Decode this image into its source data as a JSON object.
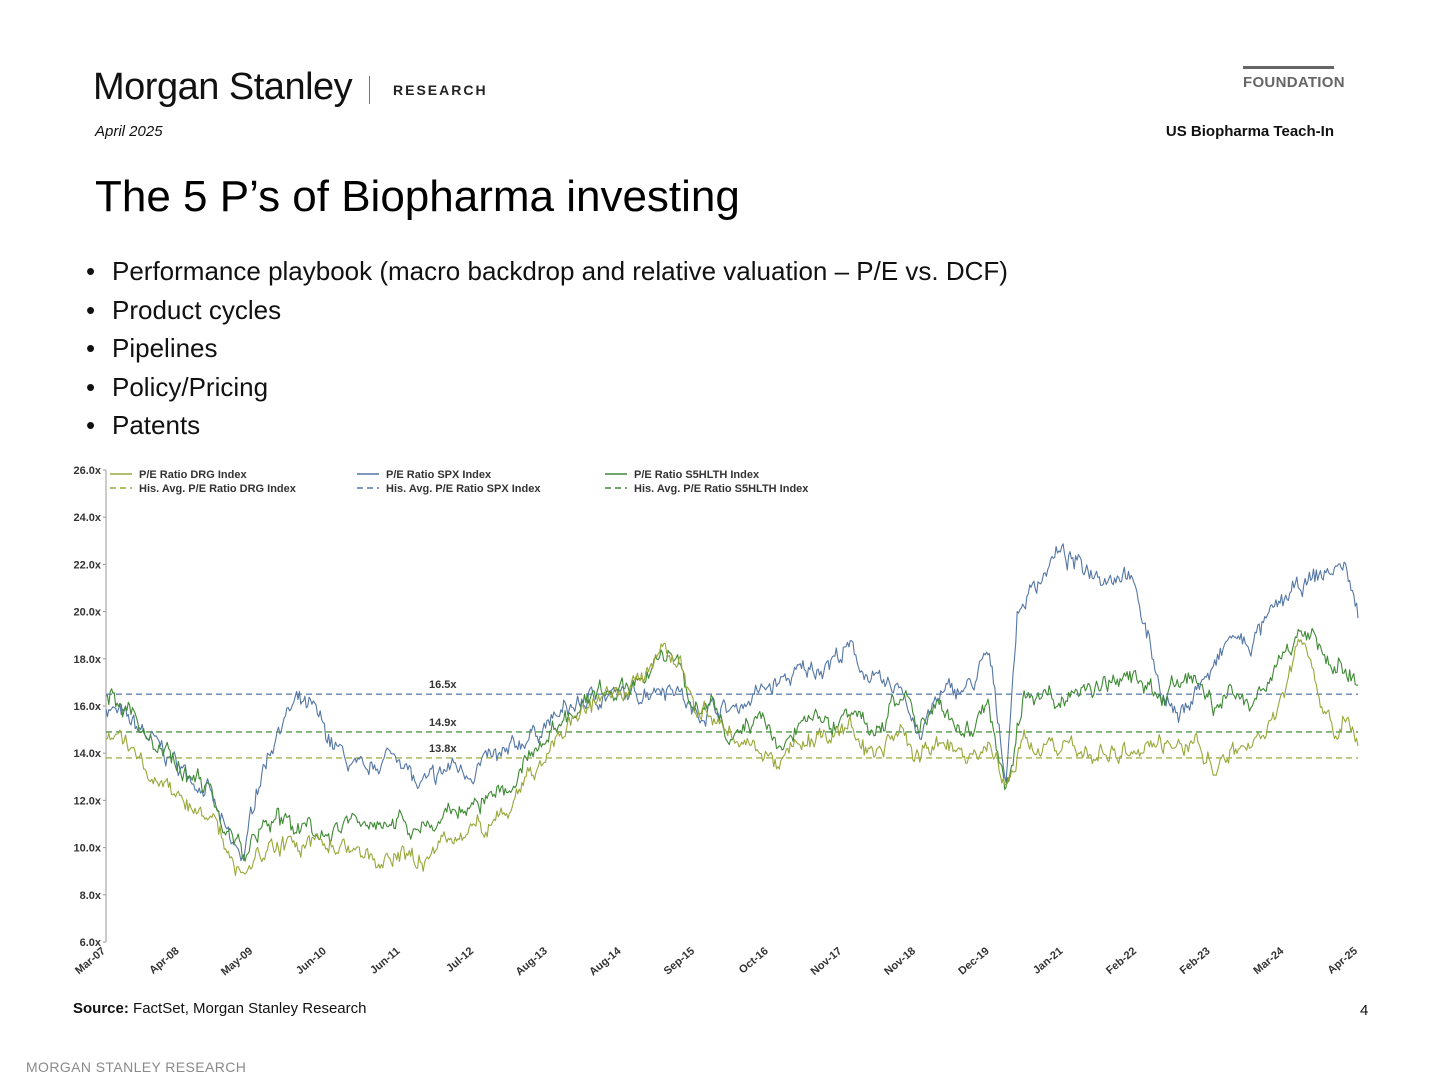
{
  "header": {
    "logo_text": "Morgan Stanley",
    "section": "RESEARCH",
    "badge": "FOUNDATION",
    "date": "April 2025",
    "report_name": "US Biopharma Teach-In"
  },
  "slide": {
    "title": "The 5 P’s of Biopharma investing",
    "bullets": [
      "Performance playbook (macro backdrop and relative valuation – P/E vs. DCF)",
      "Product cycles",
      "Pipelines",
      "Policy/Pricing",
      "Patents"
    ]
  },
  "chart_data": {
    "type": "line",
    "x_start": "2007-03",
    "x_end": "2025-04",
    "x_tick_labels": [
      "Mar-07",
      "Apr-08",
      "May-09",
      "Jun-10",
      "Jun-11",
      "Jul-12",
      "Aug-13",
      "Aug-14",
      "Sep-15",
      "Oct-16",
      "Nov-17",
      "Nov-18",
      "Dec-19",
      "Jan-21",
      "Feb-22",
      "Feb-23",
      "Mar-24",
      "Apr-25"
    ],
    "ylim": [
      6,
      26
    ],
    "y_ticks": [
      26,
      24,
      22,
      20,
      18,
      16,
      14,
      12,
      10,
      8,
      6
    ],
    "y_tick_labels": [
      "26.0x",
      "24.0x",
      "22.0x",
      "20.0x",
      "18.0x",
      "16.0x",
      "14.0x",
      "12.0x",
      "10.0x",
      "8.0x",
      "6.0x"
    ],
    "legend": [
      {
        "label": "P/E Ratio DRG Index",
        "color": "#9aa83a",
        "dash": false
      },
      {
        "label": "His. Avg. P/E Ratio DRG Index",
        "color": "#9aa83a",
        "dash": true
      },
      {
        "label": "P/E Ratio SPX Index",
        "color": "#5577a5",
        "dash": false
      },
      {
        "label": "His. Avg. P/E Ratio SPX Index",
        "color": "#5577a5",
        "dash": true
      },
      {
        "label": "P/E Ratio S5HLTH Index",
        "color": "#3f8a35",
        "dash": false
      },
      {
        "label": "His. Avg. P/E Ratio S5HLTH Index",
        "color": "#3f8a35",
        "dash": true
      }
    ],
    "annotations": [
      {
        "text": "16.5x",
        "value": 16.5
      },
      {
        "text": "14.9x",
        "value": 14.9
      },
      {
        "text": "13.8x",
        "value": 13.8
      }
    ],
    "series": [
      {
        "name": "P/E Ratio SPX Index",
        "color": "#5577a5",
        "average": 16.5,
        "points": [
          [
            "2007-03",
            16.0
          ],
          [
            "2007-09",
            15.0
          ],
          [
            "2008-03",
            13.6
          ],
          [
            "2008-09",
            12.3
          ],
          [
            "2008-11",
            11.0
          ],
          [
            "2009-01",
            10.0
          ],
          [
            "2009-03",
            9.6
          ],
          [
            "2009-05",
            12.5
          ],
          [
            "2009-09",
            15.2
          ],
          [
            "2009-12",
            16.1
          ],
          [
            "2010-03",
            15.8
          ],
          [
            "2010-06",
            14.5
          ],
          [
            "2010-09",
            13.6
          ],
          [
            "2010-12",
            13.0
          ],
          [
            "2011-03",
            13.8
          ],
          [
            "2011-06",
            14.0
          ],
          [
            "2011-09",
            12.5
          ],
          [
            "2011-12",
            12.9
          ],
          [
            "2012-03",
            13.5
          ],
          [
            "2012-06",
            13.2
          ],
          [
            "2012-09",
            13.7
          ],
          [
            "2012-12",
            13.8
          ],
          [
            "2013-03",
            14.5
          ],
          [
            "2013-06",
            15.0
          ],
          [
            "2013-09",
            15.5
          ],
          [
            "2013-12",
            16.0
          ],
          [
            "2014-03",
            16.3
          ],
          [
            "2014-06",
            16.5
          ],
          [
            "2014-09",
            16.4
          ],
          [
            "2014-12",
            16.6
          ],
          [
            "2015-03",
            16.9
          ],
          [
            "2015-06",
            16.8
          ],
          [
            "2015-09",
            15.6
          ],
          [
            "2015-12",
            16.0
          ],
          [
            "2016-03",
            15.8
          ],
          [
            "2016-06",
            16.2
          ],
          [
            "2016-09",
            16.7
          ],
          [
            "2016-12",
            17.0
          ],
          [
            "2017-03",
            17.4
          ],
          [
            "2017-06",
            17.6
          ],
          [
            "2017-09",
            18.0
          ],
          [
            "2017-12",
            18.4
          ],
          [
            "2018-03",
            17.3
          ],
          [
            "2018-06",
            16.7
          ],
          [
            "2018-09",
            16.9
          ],
          [
            "2018-12",
            14.6
          ],
          [
            "2019-03",
            16.3
          ],
          [
            "2019-06",
            16.7
          ],
          [
            "2019-09",
            16.8
          ],
          [
            "2019-12",
            18.2
          ],
          [
            "2020-03",
            13.0
          ],
          [
            "2020-05",
            20.0
          ],
          [
            "2020-09",
            21.5
          ],
          [
            "2020-12",
            22.5
          ],
          [
            "2021-03",
            22.0
          ],
          [
            "2021-06",
            21.8
          ],
          [
            "2021-09",
            21.5
          ],
          [
            "2021-12",
            21.8
          ],
          [
            "2022-03",
            19.5
          ],
          [
            "2022-06",
            16.6
          ],
          [
            "2022-09",
            15.4
          ],
          [
            "2022-12",
            16.8
          ],
          [
            "2023-03",
            17.5
          ],
          [
            "2023-06",
            19.0
          ],
          [
            "2023-09",
            18.5
          ],
          [
            "2023-12",
            19.5
          ],
          [
            "2024-03",
            20.5
          ],
          [
            "2024-06",
            21.0
          ],
          [
            "2024-09",
            21.5
          ],
          [
            "2024-12",
            21.8
          ],
          [
            "2025-02",
            21.9
          ],
          [
            "2025-04",
            19.8
          ]
        ]
      },
      {
        "name": "P/E Ratio S5HLTH Index",
        "color": "#3f8a35",
        "average": 14.9,
        "points": [
          [
            "2007-03",
            16.7
          ],
          [
            "2007-09",
            15.2
          ],
          [
            "2008-03",
            13.5
          ],
          [
            "2008-09",
            12.5
          ],
          [
            "2008-11",
            11.0
          ],
          [
            "2009-01",
            10.3
          ],
          [
            "2009-03",
            9.8
          ],
          [
            "2009-06",
            10.8
          ],
          [
            "2009-12",
            11.0
          ],
          [
            "2010-06",
            10.7
          ],
          [
            "2010-12",
            11.3
          ],
          [
            "2011-06",
            11.2
          ],
          [
            "2011-09",
            10.5
          ],
          [
            "2011-12",
            11.3
          ],
          [
            "2012-06",
            11.8
          ],
          [
            "2012-12",
            12.4
          ],
          [
            "2013-03",
            13.4
          ],
          [
            "2013-06",
            14.2
          ],
          [
            "2013-09",
            15.0
          ],
          [
            "2013-12",
            15.8
          ],
          [
            "2014-03",
            16.5
          ],
          [
            "2014-06",
            16.5
          ],
          [
            "2014-09",
            16.7
          ],
          [
            "2014-12",
            17.3
          ],
          [
            "2015-03",
            18.0
          ],
          [
            "2015-06",
            18.0
          ],
          [
            "2015-09",
            15.8
          ],
          [
            "2015-12",
            16.3
          ],
          [
            "2016-03",
            15.0
          ],
          [
            "2016-06",
            15.3
          ],
          [
            "2016-09",
            15.0
          ],
          [
            "2016-12",
            14.2
          ],
          [
            "2017-03",
            15.0
          ],
          [
            "2017-06",
            15.5
          ],
          [
            "2017-09",
            15.3
          ],
          [
            "2017-12",
            16.0
          ],
          [
            "2018-03",
            15.0
          ],
          [
            "2018-06",
            15.6
          ],
          [
            "2018-09",
            16.8
          ],
          [
            "2018-12",
            14.8
          ],
          [
            "2019-03",
            16.0
          ],
          [
            "2019-06",
            15.2
          ],
          [
            "2019-09",
            15.0
          ],
          [
            "2019-12",
            16.0
          ],
          [
            "2020-03",
            12.2
          ],
          [
            "2020-06",
            16.3
          ],
          [
            "2020-12",
            16.5
          ],
          [
            "2021-06",
            16.7
          ],
          [
            "2021-12",
            17.3
          ],
          [
            "2022-06",
            16.5
          ],
          [
            "2022-12",
            17.2
          ],
          [
            "2023-03",
            16.0
          ],
          [
            "2023-06",
            16.8
          ],
          [
            "2023-09",
            16.3
          ],
          [
            "2023-12",
            17.0
          ],
          [
            "2024-03",
            18.0
          ],
          [
            "2024-06",
            19.3
          ],
          [
            "2024-09",
            18.5
          ],
          [
            "2024-12",
            17.5
          ],
          [
            "2025-02",
            17.8
          ],
          [
            "2025-04",
            16.8
          ]
        ]
      },
      {
        "name": "P/E Ratio DRG Index",
        "color": "#9aa83a",
        "average": 13.8,
        "points": [
          [
            "2007-03",
            15.0
          ],
          [
            "2007-09",
            13.8
          ],
          [
            "2008-03",
            12.0
          ],
          [
            "2008-09",
            11.3
          ],
          [
            "2008-11",
            10.5
          ],
          [
            "2009-01",
            9.5
          ],
          [
            "2009-03",
            8.8
          ],
          [
            "2009-06",
            9.6
          ],
          [
            "2009-12",
            10.2
          ],
          [
            "2010-06",
            10.3
          ],
          [
            "2010-12",
            9.5
          ],
          [
            "2011-06",
            9.8
          ],
          [
            "2011-09",
            9.3
          ],
          [
            "2011-12",
            10.0
          ],
          [
            "2012-06",
            10.8
          ],
          [
            "2012-12",
            11.4
          ],
          [
            "2013-03",
            12.5
          ],
          [
            "2013-06",
            13.5
          ],
          [
            "2013-09",
            14.4
          ],
          [
            "2013-12",
            15.5
          ],
          [
            "2014-03",
            16.2
          ],
          [
            "2014-06",
            16.2
          ],
          [
            "2014-09",
            16.6
          ],
          [
            "2014-12",
            17.2
          ],
          [
            "2015-03",
            18.2
          ],
          [
            "2015-06",
            18.3
          ],
          [
            "2015-09",
            15.8
          ],
          [
            "2015-12",
            15.6
          ],
          [
            "2016-03",
            14.7
          ],
          [
            "2016-06",
            14.4
          ],
          [
            "2016-09",
            14.0
          ],
          [
            "2016-12",
            13.6
          ],
          [
            "2017-03",
            14.2
          ],
          [
            "2017-06",
            14.6
          ],
          [
            "2017-09",
            14.6
          ],
          [
            "2017-12",
            15.2
          ],
          [
            "2018-03",
            13.8
          ],
          [
            "2018-06",
            14.2
          ],
          [
            "2018-09",
            15.0
          ],
          [
            "2018-12",
            13.6
          ],
          [
            "2019-03",
            14.6
          ],
          [
            "2019-06",
            14.0
          ],
          [
            "2019-09",
            13.7
          ],
          [
            "2019-12",
            14.6
          ],
          [
            "2020-03",
            12.5
          ],
          [
            "2020-06",
            14.4
          ],
          [
            "2020-12",
            14.3
          ],
          [
            "2021-06",
            13.9
          ],
          [
            "2021-12",
            14.2
          ],
          [
            "2022-06",
            14.3
          ],
          [
            "2022-12",
            14.4
          ],
          [
            "2023-03",
            13.3
          ],
          [
            "2023-06",
            14.2
          ],
          [
            "2023-09",
            14.3
          ],
          [
            "2023-12",
            15.0
          ],
          [
            "2024-03",
            16.3
          ],
          [
            "2024-06",
            18.8
          ],
          [
            "2024-09",
            17.0
          ],
          [
            "2024-12",
            14.8
          ],
          [
            "2025-02",
            15.8
          ],
          [
            "2025-04",
            14.8
          ]
        ]
      }
    ]
  },
  "footer": {
    "source_label": "Source:",
    "source_text": " FactSet, Morgan Stanley Research",
    "page_number": "4",
    "brand_footer": "MORGAN STANLEY RESEARCH"
  }
}
